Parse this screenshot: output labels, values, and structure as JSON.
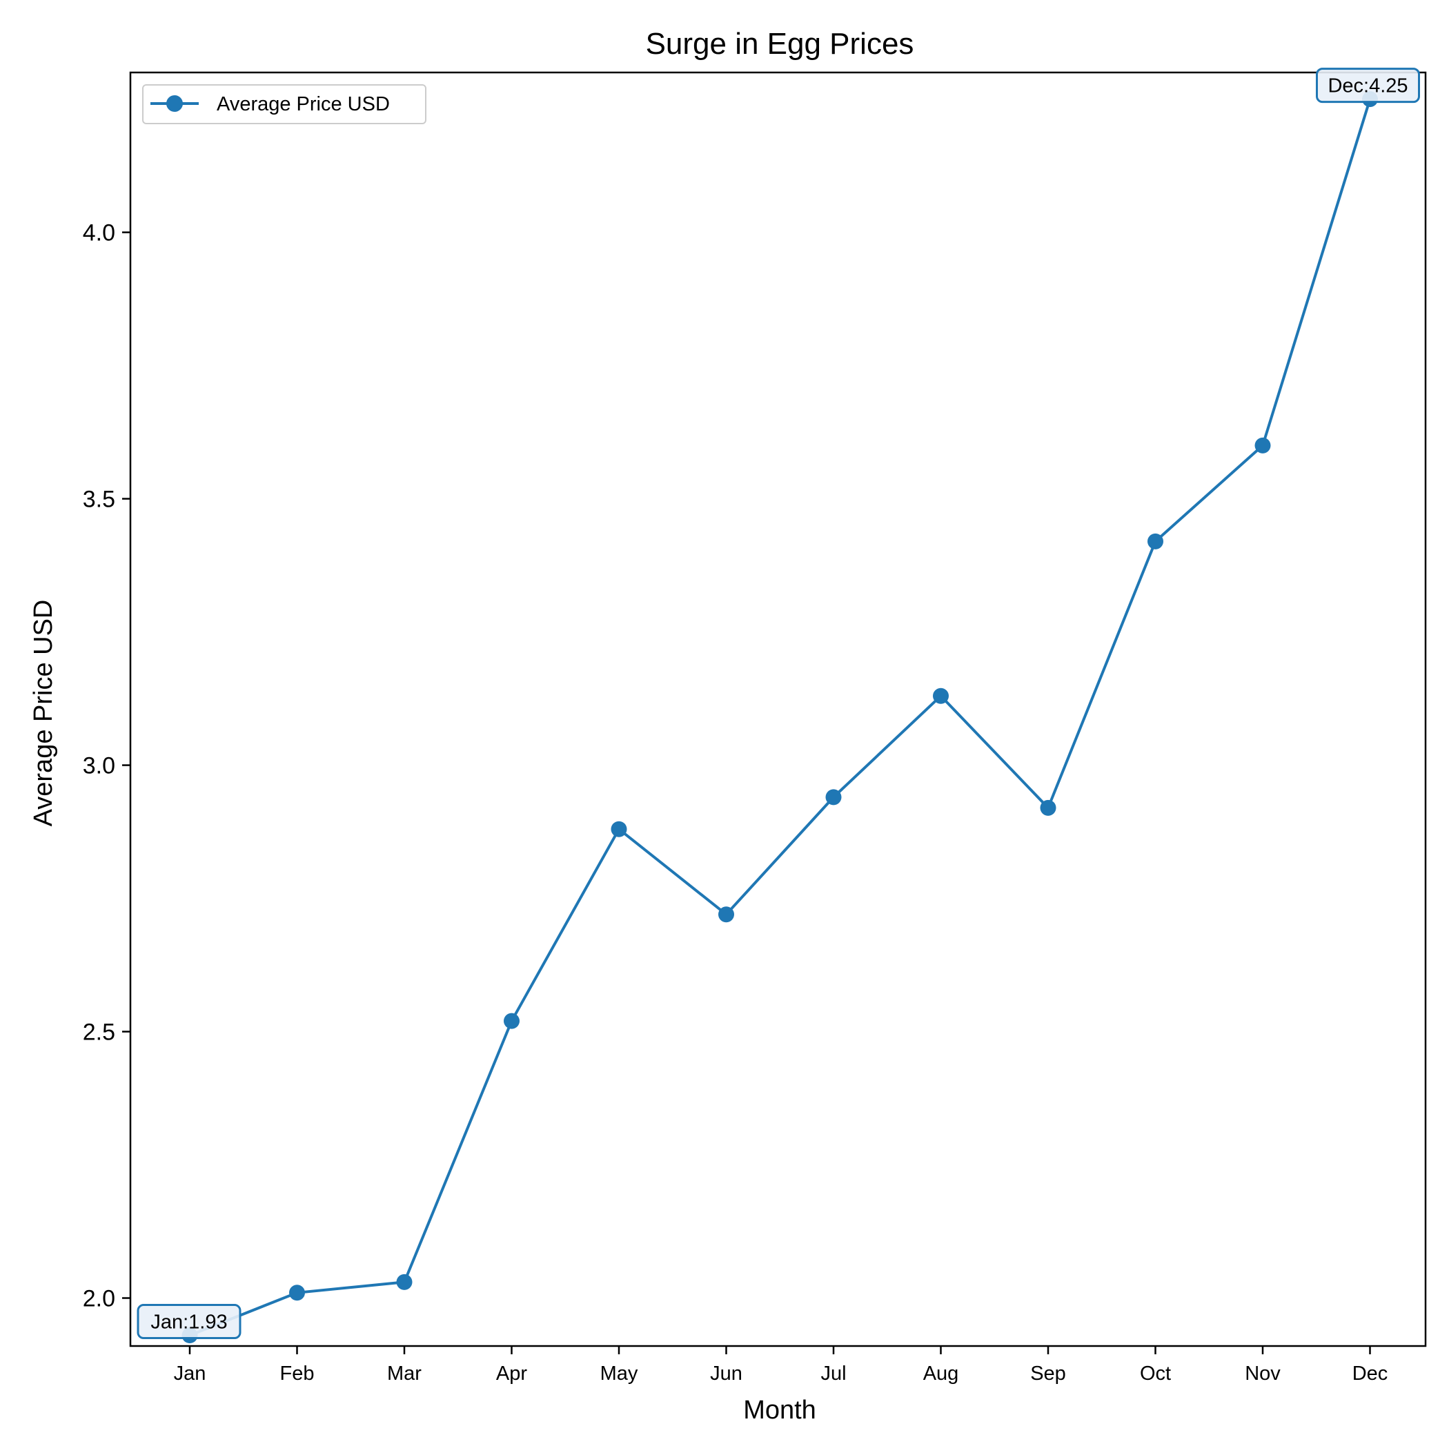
{
  "chart_data": {
    "type": "line",
    "title": "Surge in Egg Prices",
    "xlabel": "Month",
    "ylabel": "Average Price USD",
    "categories": [
      "Jan",
      "Feb",
      "Mar",
      "Apr",
      "May",
      "Jun",
      "Jul",
      "Aug",
      "Sep",
      "Oct",
      "Nov",
      "Dec"
    ],
    "series": [
      {
        "name": "Average Price USD",
        "color": "#1f77b4",
        "marker": "circle",
        "values": [
          1.93,
          2.01,
          2.03,
          2.52,
          2.88,
          2.72,
          2.94,
          3.13,
          2.92,
          3.42,
          3.6,
          4.25
        ]
      }
    ],
    "yticks": [
      2.0,
      2.5,
      3.0,
      3.5,
      4.0
    ],
    "ytick_labels": [
      "2.0",
      "2.5",
      "3.0",
      "3.5",
      "4.0"
    ],
    "ylim": [
      1.91,
      4.3
    ],
    "grid": false,
    "legend": {
      "position": "top-left",
      "entries": [
        "Average Price USD"
      ]
    },
    "annotations": [
      {
        "index": 0,
        "text": "Jan:1.93",
        "placement": "left"
      },
      {
        "index": 11,
        "text": "Dec:4.25",
        "placement": "right"
      }
    ]
  }
}
